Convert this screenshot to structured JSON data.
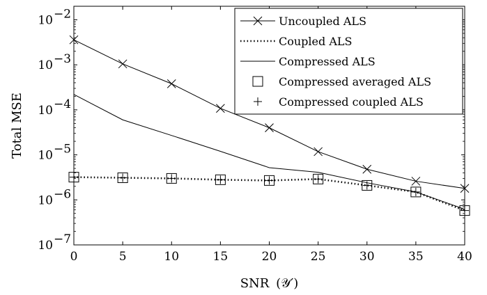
{
  "chart_data": {
    "type": "line",
    "xlabel": "SNR",
    "xlabel_math": "(𝒴′)",
    "ylabel": "Total MSE",
    "y_scale": "log",
    "xlim": [
      0,
      40
    ],
    "ylim": [
      1e-07,
      0.02
    ],
    "x_ticks": [
      0,
      5,
      10,
      15,
      20,
      25,
      30,
      35,
      40
    ],
    "y_ticks": [
      {
        "value": 1e-07,
        "base": "10",
        "exp": "−7"
      },
      {
        "value": 1e-06,
        "base": "10",
        "exp": "−6"
      },
      {
        "value": 1e-05,
        "base": "10",
        "exp": "−5"
      },
      {
        "value": 0.0001,
        "base": "10",
        "exp": "−4"
      },
      {
        "value": 0.001,
        "base": "10",
        "exp": "−3"
      },
      {
        "value": 0.01,
        "base": "10",
        "exp": "−2"
      }
    ],
    "grid": false,
    "legend_position": "top-right",
    "x": [
      0,
      5,
      10,
      15,
      20,
      25,
      30,
      35,
      40
    ],
    "series": [
      {
        "name": "Uncoupled ALS",
        "style": "solid",
        "marker": "x",
        "values": [
          0.0036,
          0.00105,
          0.00038,
          0.000108,
          4e-05,
          1.18e-05,
          4.8e-06,
          2.6e-06,
          1.8e-06
        ]
      },
      {
        "name": "Coupled ALS",
        "style": "dotted",
        "marker": "none",
        "values": [
          3.2e-06,
          3.1e-06,
          3e-06,
          2.8e-06,
          2.7e-06,
          2.9e-06,
          2.1e-06,
          1.5e-06,
          5.8e-07
        ]
      },
      {
        "name": "Compressed ALS",
        "style": "solid",
        "marker": "none",
        "values": [
          0.00022,
          6e-05,
          2.7e-05,
          1.2e-05,
          5.2e-06,
          4.1e-06,
          2.4e-06,
          1.5e-06,
          6.2e-07
        ]
      },
      {
        "name": "Compressed averaged ALS",
        "style": "none",
        "marker": "square",
        "values": [
          3.2e-06,
          3.1e-06,
          3e-06,
          2.8e-06,
          2.7e-06,
          2.9e-06,
          2.1e-06,
          1.5e-06,
          5.8e-07
        ]
      },
      {
        "name": "Compressed coupled ALS",
        "style": "none",
        "marker": "plus",
        "values": [
          3.2e-06,
          3.1e-06,
          3e-06,
          2.8e-06,
          2.7e-06,
          2.9e-06,
          2.1e-06,
          1.5e-06,
          5.8e-07
        ]
      }
    ]
  }
}
